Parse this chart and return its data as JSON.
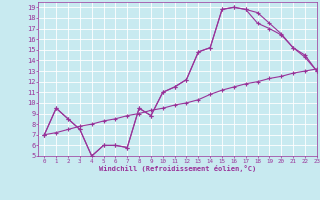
{
  "xlabel": "Windchill (Refroidissement éolien,°C)",
  "xlim": [
    -0.5,
    23
  ],
  "ylim": [
    5,
    19.5
  ],
  "xticks": [
    0,
    1,
    2,
    3,
    4,
    5,
    6,
    7,
    8,
    9,
    10,
    11,
    12,
    13,
    14,
    15,
    16,
    17,
    18,
    19,
    20,
    21,
    22,
    23
  ],
  "yticks": [
    5,
    6,
    7,
    8,
    9,
    10,
    11,
    12,
    13,
    14,
    15,
    16,
    17,
    18,
    19
  ],
  "background_color": "#c8eaf0",
  "line_color": "#993399",
  "grid_color": "#b0d8e0",
  "curve1_x": [
    0,
    1,
    2,
    3,
    4,
    5,
    6,
    7,
    8,
    9,
    10,
    11,
    12,
    13,
    14,
    15,
    16,
    17,
    18,
    19,
    20,
    21,
    22,
    23
  ],
  "curve1_y": [
    7.0,
    9.5,
    8.5,
    7.5,
    5.0,
    6.0,
    6.0,
    5.8,
    9.5,
    8.8,
    11.0,
    11.5,
    12.2,
    14.8,
    15.2,
    18.8,
    19.0,
    18.8,
    18.5,
    17.5,
    16.5,
    15.2,
    14.5,
    13.0
  ],
  "curve2_x": [
    0,
    1,
    2,
    3,
    4,
    5,
    6,
    7,
    8,
    9,
    10,
    11,
    12,
    13,
    14,
    15,
    16,
    17,
    18,
    19,
    20,
    21,
    22,
    23
  ],
  "curve2_y": [
    7.0,
    9.5,
    8.5,
    7.5,
    5.0,
    6.0,
    6.0,
    5.8,
    9.5,
    8.8,
    11.0,
    11.5,
    12.2,
    14.8,
    15.2,
    18.8,
    19.0,
    18.8,
    17.5,
    17.0,
    16.4,
    15.2,
    14.3,
    13.0
  ],
  "curve3_x": [
    0,
    1,
    2,
    3,
    4,
    5,
    6,
    7,
    8,
    9,
    10,
    11,
    12,
    13,
    14,
    15,
    16,
    17,
    18,
    19,
    20,
    21,
    22,
    23
  ],
  "curve3_y": [
    7.0,
    7.2,
    7.5,
    7.8,
    8.0,
    8.3,
    8.5,
    8.8,
    9.0,
    9.3,
    9.5,
    9.8,
    10.0,
    10.3,
    10.8,
    11.2,
    11.5,
    11.8,
    12.0,
    12.3,
    12.5,
    12.8,
    13.0,
    13.2
  ]
}
